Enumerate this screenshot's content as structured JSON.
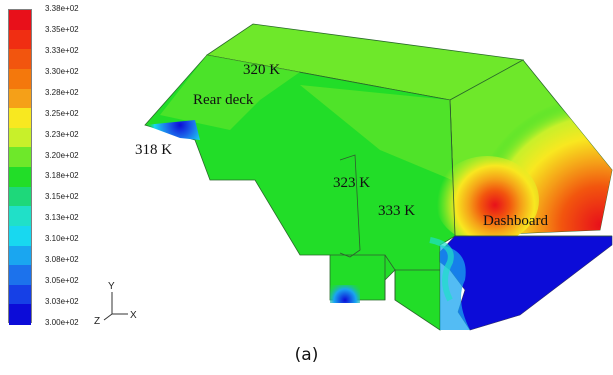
{
  "legend": {
    "ticks": [
      "3.38e+02",
      "3.35e+02",
      "3.33e+02",
      "3.30e+02",
      "3.28e+02",
      "3.25e+02",
      "3.23e+02",
      "3.20e+02",
      "3.18e+02",
      "3.15e+02",
      "3.13e+02",
      "3.10e+02",
      "3.08e+02",
      "3.05e+02",
      "3.03e+02",
      "3.00e+02"
    ],
    "colors": [
      "#e8101a",
      "#f02e12",
      "#f2550e",
      "#f4780c",
      "#f5a018",
      "#f8e820",
      "#c8f02a",
      "#6ee82a",
      "#22dd28",
      "#1ed87a",
      "#20e0c8",
      "#18d8f0",
      "#1aa6f0",
      "#1c72ec",
      "#1640e6",
      "#0c0cd8"
    ]
  },
  "annotations": {
    "t320": "320 K",
    "rear_deck": "Rear deck",
    "t318": "318 K",
    "t323": "323 K",
    "t333": "333 K",
    "dashboard": "Dashboard"
  },
  "triad": {
    "x": "X",
    "y": "Y",
    "z": "Z"
  },
  "caption": "(a)"
}
